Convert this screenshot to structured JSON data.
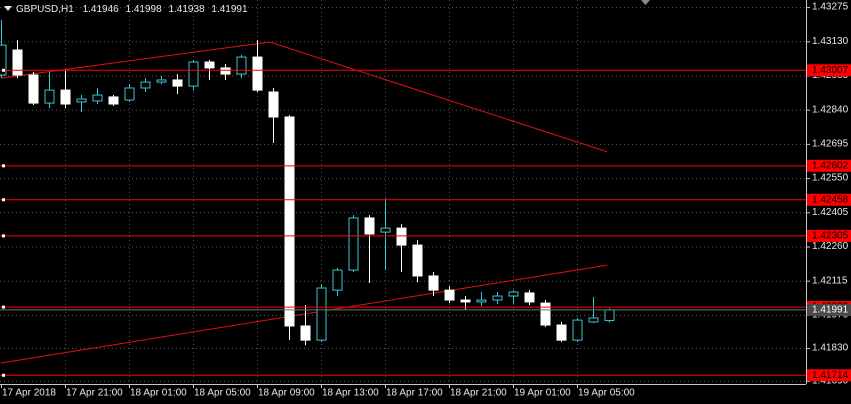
{
  "chart_data": {
    "type": "candlestick",
    "symbol": "GBPUSD,H1",
    "categories": [
      "17 Apr 2018",
      null,
      null,
      null,
      "17 Apr 21:00",
      null,
      null,
      null,
      "18 Apr 01:00",
      null,
      null,
      null,
      "18 Apr 05:00",
      null,
      null,
      null,
      "18 Apr 09:00",
      null,
      null,
      null,
      "18 Apr 13:00",
      null,
      null,
      null,
      "18 Apr 17:00",
      null,
      null,
      null,
      "18 Apr 21:00",
      null,
      null,
      null,
      "19 Apr 01:00",
      null,
      null,
      null,
      "19 Apr 05:00",
      null,
      null
    ],
    "open": [
      1.42987,
      1.43093,
      1.42987,
      1.42868,
      1.42923,
      1.42873,
      1.42877,
      1.42894,
      1.42881,
      1.42932,
      1.42957,
      1.42966,
      1.4294,
      1.43042,
      1.43017,
      1.42991,
      1.43063,
      1.42915,
      1.42809,
      1.41923,
      1.41863,
      1.42075,
      1.4216,
      1.42381,
      1.42321,
      1.42338,
      1.42266,
      1.42135,
      1.42075,
      1.42033,
      1.42025,
      1.42033,
      1.4205,
      1.42063,
      1.4202,
      1.41927,
      1.41863,
      1.4194,
      1.41946
    ],
    "high": [
      1.4322,
      1.43135,
      1.43,
      1.43,
      1.43008,
      1.42902,
      1.42932,
      1.42902,
      1.42949,
      1.42974,
      1.42983,
      1.42991,
      1.43051,
      1.43051,
      1.43034,
      1.43072,
      1.43135,
      1.42932,
      1.42817,
      1.42012,
      1.42097,
      1.42169,
      1.42393,
      1.42393,
      1.42465,
      1.42355,
      1.42287,
      1.42152,
      1.42092,
      1.4205,
      1.42067,
      1.42067,
      1.42075,
      1.42075,
      1.42033,
      1.4194,
      1.41957,
      1.42046,
      1.41998
    ],
    "low": [
      1.42974,
      1.42974,
      1.4286,
      1.42847,
      1.42847,
      1.4283,
      1.42864,
      1.42856,
      1.42873,
      1.42915,
      1.42949,
      1.42906,
      1.42923,
      1.42966,
      1.42966,
      1.42974,
      1.42915,
      1.42699,
      1.41863,
      1.41842,
      1.41855,
      1.4205,
      1.42152,
      1.42105,
      1.4216,
      1.42152,
      1.42109,
      1.4205,
      1.4202,
      1.41991,
      1.42008,
      1.42016,
      1.42016,
      1.42012,
      1.41919,
      1.41855,
      1.41855,
      1.41935,
      1.41938
    ],
    "close": [
      1.43114,
      1.42987,
      1.42868,
      1.42923,
      1.42864,
      1.42885,
      1.42902,
      1.42864,
      1.42932,
      1.42957,
      1.42966,
      1.4294,
      1.43042,
      1.43017,
      1.42991,
      1.43063,
      1.42923,
      1.42809,
      1.41923,
      1.41863,
      1.42084,
      1.4216,
      1.42381,
      1.42313,
      1.42338,
      1.42266,
      1.42135,
      1.42075,
      1.42033,
      1.42025,
      1.42033,
      1.4205,
      1.42067,
      1.42025,
      1.41927,
      1.41863,
      1.41948,
      1.41957,
      1.41991
    ],
    "up_color": "#38c4d0",
    "down_color": "#ffffff",
    "ylim": [
      1.41677,
      1.43305
    ],
    "yticks": [
      1.43275,
      {
        "value": 1.4313,
        "label": "1.43130"
      },
      1.42985,
      {
        "value": 1.4284,
        "label": "1.42840"
      },
      1.42695,
      {
        "value": 1.4255,
        "label": "1.42550"
      },
      1.42405,
      {
        "value": 1.4226,
        "label": "1.42260"
      },
      1.42115,
      {
        "value": 1.4197,
        "label": "1.41970"
      },
      {
        "value": 1.4183,
        "label": "1.41830"
      },
      {
        "value": 1.4169,
        "label": "1.41690"
      }
    ],
    "grid": true,
    "levels": [
      {
        "value": 1.43007,
        "color": "#ff0000"
      },
      {
        "value": 1.42602,
        "color": "#ff0000"
      },
      {
        "value": 1.42458,
        "color": "#ff0000"
      },
      {
        "value": 1.42305,
        "color": "#ff0000"
      },
      {
        "value": 1.42003,
        "color": "#ff0000"
      },
      {
        "value": 1.41714,
        "color": "#ff0000"
      }
    ],
    "trend_lines": [
      {
        "color": "#e01010",
        "x": [
          0,
          16.8,
          37.9
        ],
        "values": [
          1.42974,
          1.43127,
          1.42661
        ]
      },
      {
        "color": "#e01010",
        "x": [
          0,
          37.9
        ],
        "values": [
          1.41766,
          1.42181
        ]
      }
    ]
  }
}
